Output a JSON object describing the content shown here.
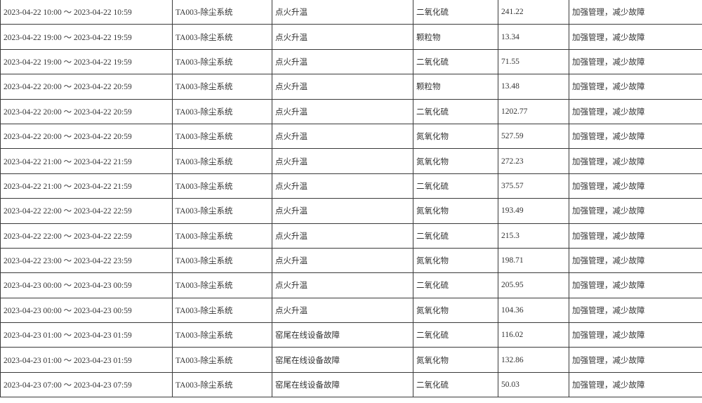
{
  "table": {
    "rows": [
      [
        "2023-04-22 10:00 ～ 2023-04-22 10:59",
        "TA003-除尘系统",
        "点火升温",
        "二氧化硫",
        "241.22",
        "加强管理，减少故障"
      ],
      [
        "2023-04-22 19:00 ～ 2023-04-22 19:59",
        "TA003-除尘系统",
        "点火升温",
        "颗粒物",
        "13.34",
        "加强管理，减少故障"
      ],
      [
        "2023-04-22 19:00 ～ 2023-04-22 19:59",
        "TA003-除尘系统",
        "点火升温",
        "二氧化硫",
        "71.55",
        "加强管理，减少故障"
      ],
      [
        "2023-04-22 20:00 ～ 2023-04-22 20:59",
        "TA003-除尘系统",
        "点火升温",
        "颗粒物",
        "13.48",
        "加强管理，减少故障"
      ],
      [
        "2023-04-22 20:00 ～ 2023-04-22 20:59",
        "TA003-除尘系统",
        "点火升温",
        "二氧化硫",
        "1202.77",
        "加强管理，减少故障"
      ],
      [
        "2023-04-22 20:00 ～ 2023-04-22 20:59",
        "TA003-除尘系统",
        "点火升温",
        "氮氧化物",
        "527.59",
        "加强管理，减少故障"
      ],
      [
        "2023-04-22 21:00 ～ 2023-04-22 21:59",
        "TA003-除尘系统",
        "点火升温",
        "氮氧化物",
        "272.23",
        "加强管理，减少故障"
      ],
      [
        "2023-04-22 21:00 ～ 2023-04-22 21:59",
        "TA003-除尘系统",
        "点火升温",
        "二氧化硫",
        "375.57",
        "加强管理，减少故障"
      ],
      [
        "2023-04-22 22:00 ～ 2023-04-22 22:59",
        "TA003-除尘系统",
        "点火升温",
        "氮氧化物",
        "193.49",
        "加强管理，减少故障"
      ],
      [
        "2023-04-22 22:00 ～ 2023-04-22 22:59",
        "TA003-除尘系统",
        "点火升温",
        "二氧化硫",
        "215.3",
        "加强管理，减少故障"
      ],
      [
        "2023-04-22 23:00 ～ 2023-04-22 23:59",
        "TA003-除尘系统",
        "点火升温",
        "氮氧化物",
        "198.71",
        "加强管理，减少故障"
      ],
      [
        "2023-04-23 00:00 ～ 2023-04-23 00:59",
        "TA003-除尘系统",
        "点火升温",
        "二氧化硫",
        "205.95",
        "加强管理，减少故障"
      ],
      [
        "2023-04-23 00:00 ～ 2023-04-23 00:59",
        "TA003-除尘系统",
        "点火升温",
        "氮氧化物",
        "104.36",
        "加强管理，减少故障"
      ],
      [
        "2023-04-23 01:00 ～ 2023-04-23 01:59",
        "TA003-除尘系统",
        "窑尾在线设备故障",
        "二氧化硫",
        "116.02",
        "加强管理，减少故障"
      ],
      [
        "2023-04-23 01:00 ～ 2023-04-23 01:59",
        "TA003-除尘系统",
        "窑尾在线设备故障",
        "氮氧化物",
        "132.86",
        "加强管理，减少故障"
      ],
      [
        "2023-04-23 07:00 ～ 2023-04-23 07:59",
        "TA003-除尘系统",
        "窑尾在线设备故障",
        "二氧化硫",
        "50.03",
        "加强管理，减少故障"
      ]
    ]
  }
}
